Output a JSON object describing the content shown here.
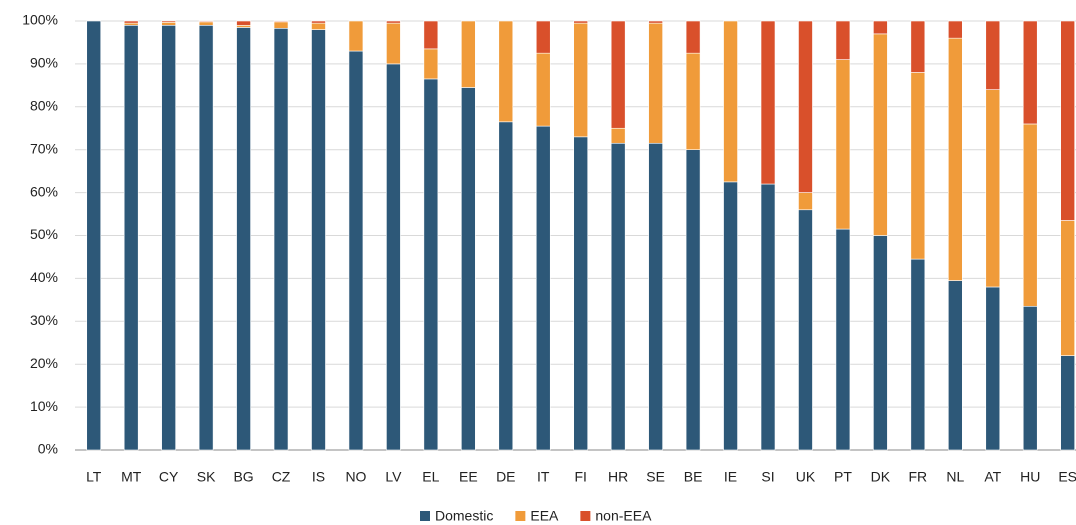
{
  "chart_data": {
    "type": "stacked-bar",
    "categories": [
      "LT",
      "MT",
      "CY",
      "SK",
      "BG",
      "CZ",
      "IS",
      "NO",
      "LV",
      "EL",
      "EE",
      "DE",
      "IT",
      "FI",
      "HR",
      "SE",
      "BE",
      "IE",
      "SI",
      "UK",
      "PT",
      "DK",
      "FR",
      "NL",
      "AT",
      "HU",
      "ES"
    ],
    "series": [
      {
        "name": "Domestic",
        "color": "#2d5878",
        "values": [
          100,
          99,
          99,
          99,
          98.5,
          98.3,
          98,
          93,
          90,
          86.5,
          84.5,
          76.5,
          75.5,
          73,
          71.5,
          71.5,
          70,
          62.5,
          62,
          56,
          51.5,
          50,
          44.5,
          39.5,
          38,
          33.5,
          22
        ]
      },
      {
        "name": "EEA",
        "color": "#f09b3a",
        "values": [
          0,
          0.5,
          0.7,
          0.8,
          0.5,
          1.5,
          1.5,
          7,
          9.5,
          7,
          15.5,
          23.5,
          17,
          26.5,
          3.5,
          28,
          22.5,
          37.5,
          0,
          4,
          39.5,
          47,
          43.5,
          56.5,
          46,
          42.5,
          31.5
        ]
      },
      {
        "name": "non-EEA",
        "color": "#d9502b",
        "values": [
          0,
          0.5,
          0.3,
          0.2,
          1,
          0.2,
          0.5,
          0,
          0.5,
          6.5,
          0,
          0,
          7.5,
          0.5,
          25,
          0.5,
          7.5,
          0,
          38,
          40,
          9,
          3,
          12,
          4,
          16,
          24,
          46.5
        ]
      }
    ],
    "ylim": [
      0,
      100
    ],
    "yticks": [
      {
        "value": 0,
        "label": "0%"
      },
      {
        "value": 10,
        "label": "10%"
      },
      {
        "value": 20,
        "label": "20%"
      },
      {
        "value": 30,
        "label": "30%"
      },
      {
        "value": 40,
        "label": "40%"
      },
      {
        "value": 50,
        "label": "50%"
      },
      {
        "value": 60,
        "label": "60%"
      },
      {
        "value": 70,
        "label": "70%"
      },
      {
        "value": 80,
        "label": "80%"
      },
      {
        "value": 90,
        "label": "90%"
      },
      {
        "value": 100,
        "label": "100%"
      }
    ],
    "grid": true,
    "legend": "bottom"
  }
}
